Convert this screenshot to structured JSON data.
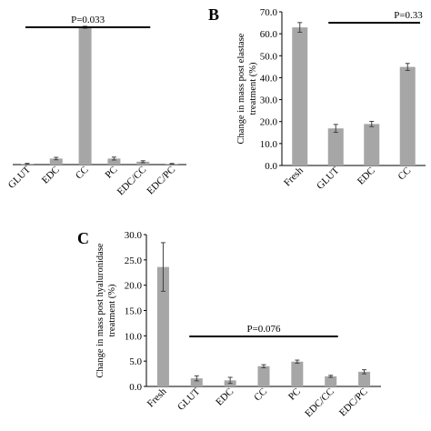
{
  "colors": {
    "bar": "#a6a6a6",
    "axis": "#000000",
    "error": "#404040"
  },
  "panel_labels": {
    "A": "",
    "B": "B",
    "C": "C"
  },
  "chart_data": [
    {
      "id": "A",
      "type": "bar",
      "title": "",
      "ylabel": "",
      "categories": [
        "GLUT",
        "EDC",
        "CC",
        "PC",
        "EDC/CC",
        "EDC/PC"
      ],
      "values": [
        0.3,
        2.5,
        57.0,
        2.5,
        1.2,
        0.3
      ],
      "errors": [
        0.2,
        0.5,
        0.4,
        0.6,
        0.4,
        0.15
      ],
      "ylim": [
        0,
        60
      ],
      "show_yaxis": false,
      "significance": {
        "label": "P=0.033",
        "from": 0,
        "to": 4
      }
    },
    {
      "id": "B",
      "type": "bar",
      "title": "",
      "ylabel": "Change in mass post elastase treatment (%)",
      "categories": [
        "Fresh",
        "GLUT",
        "EDC",
        "CC"
      ],
      "values": [
        62.9,
        16.9,
        18.9,
        44.9
      ],
      "errors": [
        2.2,
        1.8,
        1.2,
        1.6
      ],
      "ylim": [
        0,
        70
      ],
      "yticks": [
        "0.0",
        "10.0",
        "20.0",
        "30.0",
        "40.0",
        "50.0",
        "60.0",
        "70.0"
      ],
      "show_yaxis": true,
      "significance": {
        "label": "P=0.33",
        "from": 1,
        "to": 3
      }
    },
    {
      "id": "C",
      "type": "bar",
      "title": "",
      "ylabel": "Change in mass post hyaluronidase treatment (%)",
      "categories": [
        "Fresh",
        "GLUT",
        "EDC",
        "CC",
        "PC",
        "EDC/CC",
        "EDC/PC"
      ],
      "values": [
        23.6,
        1.6,
        1.2,
        4.0,
        4.9,
        2.0,
        2.9
      ],
      "errors": [
        4.8,
        0.5,
        0.6,
        0.3,
        0.3,
        0.2,
        0.4
      ],
      "ylim": [
        0,
        30
      ],
      "yticks": [
        "0.0",
        "5.0",
        "10.0",
        "15.0",
        "20.0",
        "25.0",
        "30.0"
      ],
      "show_yaxis": true,
      "significance": {
        "label": "P=0.076",
        "from": 1,
        "to": 5
      }
    }
  ]
}
